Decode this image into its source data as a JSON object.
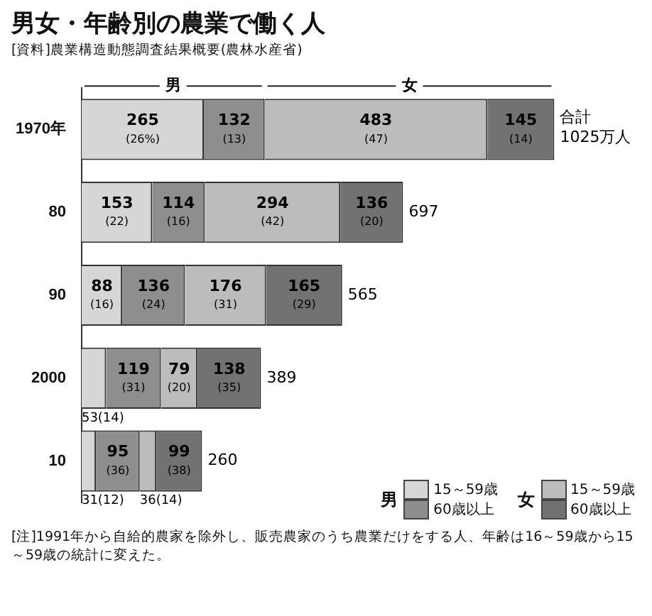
{
  "chart_data": {
    "type": "bar",
    "orientation": "horizontal",
    "stacked": true,
    "grid": false,
    "legend": "bottom right",
    "title": "男女・年齢別の農業で働く人",
    "categories": [
      "1970年",
      "80",
      "90",
      "2000",
      "10"
    ],
    "series": [
      {
        "name": "15～59歳",
        "color": "#d6d6d6",
        "values": [
          265,
          153,
          88,
          53,
          31
        ],
        "value_labels": [
          "265(26%)",
          "153(22)",
          "88(16)",
          "53(14)",
          "31(12)"
        ]
      },
      {
        "name": "60歳以上",
        "color": "#8e8e8e",
        "values": [
          132,
          114,
          136,
          119,
          95
        ],
        "value_labels": [
          "132(13)",
          "114(16)",
          "136(24)",
          "119(31)",
          "95(36)"
        ]
      },
      {
        "name": "15～59歳",
        "color": "#bcbcbc",
        "values": [
          483,
          294,
          176,
          79,
          36
        ],
        "value_labels": [
          "483(47)",
          "294(42)",
          "176(31)",
          "79(20)",
          "36(14)"
        ]
      },
      {
        "name": "60歳以上",
        "color": "#727272",
        "values": [
          145,
          136,
          165,
          138,
          99
        ],
        "value_labels": [
          "145(14)",
          "136(20)",
          "165(29)",
          "138(35)",
          "99(38)"
        ]
      }
    ],
    "totals": [
      "1025万人",
      "697",
      "565",
      "389",
      "260"
    ],
    "annotations": [
      "男",
      "女",
      "合計",
      "[資料]農業構造動態調査結果概要(農林水産省)",
      "[注]1991年から自給的農家を除外し、販売農家のうち農業だけをする人、年齢は16～59歳から15～59歳の統計に変えた。"
    ]
  }
}
